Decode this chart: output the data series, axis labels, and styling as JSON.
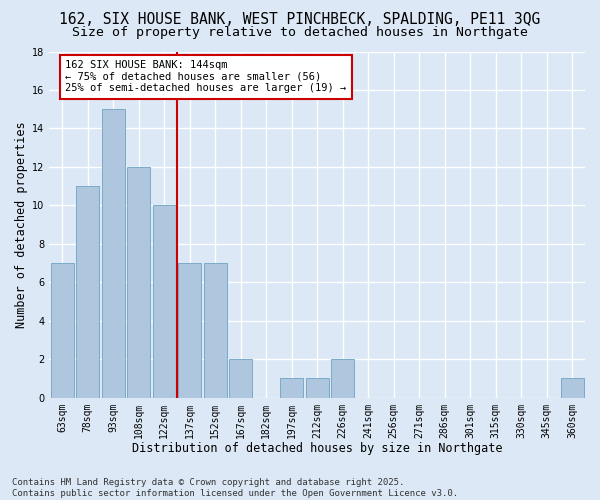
{
  "title_line1": "162, SIX HOUSE BANK, WEST PINCHBECK, SPALDING, PE11 3QG",
  "title_line2": "Size of property relative to detached houses in Northgate",
  "xlabel": "Distribution of detached houses by size in Northgate",
  "ylabel": "Number of detached properties",
  "categories": [
    "63sqm",
    "78sqm",
    "93sqm",
    "108sqm",
    "122sqm",
    "137sqm",
    "152sqm",
    "167sqm",
    "182sqm",
    "197sqm",
    "212sqm",
    "226sqm",
    "241sqm",
    "256sqm",
    "271sqm",
    "286sqm",
    "301sqm",
    "315sqm",
    "330sqm",
    "345sqm",
    "360sqm"
  ],
  "values": [
    7,
    11,
    15,
    12,
    10,
    7,
    7,
    2,
    0,
    1,
    1,
    2,
    0,
    0,
    0,
    0,
    0,
    0,
    0,
    0,
    1
  ],
  "bar_color": "#aec6de",
  "bar_edge_color": "#7aaac8",
  "red_line_index": 5,
  "annotation_text": "162 SIX HOUSE BANK: 144sqm\n← 75% of detached houses are smaller (56)\n25% of semi-detached houses are larger (19) →",
  "annotation_box_color": "#ffffff",
  "annotation_box_edge": "#cc0000",
  "red_line_color": "#cc0000",
  "ylim": [
    0,
    18
  ],
  "yticks": [
    0,
    2,
    4,
    6,
    8,
    10,
    12,
    14,
    16,
    18
  ],
  "background_color": "#dce8f5",
  "grid_color": "#ffffff",
  "footer_line1": "Contains HM Land Registry data © Crown copyright and database right 2025.",
  "footer_line2": "Contains public sector information licensed under the Open Government Licence v3.0.",
  "title_fontsize": 10.5,
  "subtitle_fontsize": 9.5,
  "axis_label_fontsize": 8.5,
  "tick_fontsize": 7,
  "annotation_fontsize": 7.5,
  "footer_fontsize": 6.5
}
